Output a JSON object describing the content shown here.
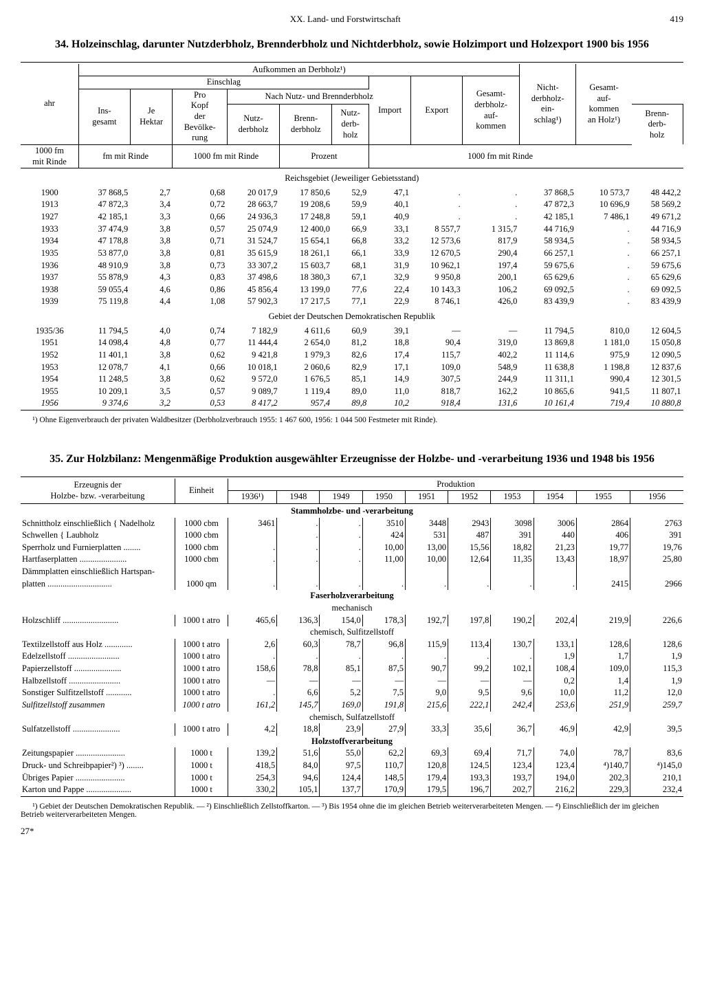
{
  "page": {
    "chapter": "XX. Land- und Forstwirtschaft",
    "number": "419",
    "signature": "27*"
  },
  "table34": {
    "title": "34. Holzeinschlag, darunter Nutzderbholz, Brennderbholz und Nichtderbholz, sowie Holzimport und Holzexport 1900 bis 1956",
    "head": {
      "jahr": "ahr",
      "aufkommen": "Aufkommen an Derbholz¹)",
      "einschlag": "Einschlag",
      "nachnb": "Nach Nutz- und Brennderbholz",
      "ins": "Ins-\ngesamt",
      "jeha": "Je\nHektar",
      "prokopf": "Pro\nKopf\nder\nBevölke-\nrung",
      "nutzd": "Nutz-\nderbholz",
      "brennd": "Brenn-\nderbholz",
      "nutzdh": "Nutz-\nderb-\nholz",
      "brenndh": "Brenn-\nderb-\nholz",
      "import": "Import",
      "export": "Export",
      "gesamtdh": "Gesamt-\nderbholz-\nauf-\nkommen",
      "nichtdh": "Nicht-\nderbholz-\nein-\nschlag¹)",
      "gesamtauf": "Gesamt-\nauf-\nkommen\nan Holz¹)",
      "u1": "1000 fm\nmit Rinde",
      "u2": "fm mit Rinde",
      "u3": "1000 fm mit Rinde",
      "u4": "Prozent",
      "u5": "1000 fm mit Rinde"
    },
    "sec1": "Reichsgebiet (Jeweiliger Gebietsstand)",
    "sec2": "Gebiet der Deutschen Demokratischen Republik",
    "rows1": [
      [
        "1900",
        "37 868,5",
        "2,7",
        "0,68",
        "20 017,9",
        "17 850,6",
        "52,9",
        "47,1",
        ".",
        ".",
        "37 868,5",
        "10 573,7",
        "48 442,2"
      ],
      [
        "1913",
        "47 872,3",
        "3,4",
        "0,72",
        "28 663,7",
        "19 208,6",
        "59,9",
        "40,1",
        ".",
        ".",
        "47 872,3",
        "10 696,9",
        "58 569,2"
      ],
      [
        "1927",
        "42 185,1",
        "3,3",
        "0,66",
        "24 936,3",
        "17 248,8",
        "59,1",
        "40,9",
        ".",
        ".",
        "42 185,1",
        "7 486,1",
        "49 671,2"
      ],
      [
        "1933",
        "37 474,9",
        "3,8",
        "0,57",
        "25 074,9",
        "12 400,0",
        "66,9",
        "33,1",
        "8 557,7",
        "1 315,7",
        "44 716,9",
        ".",
        "44 716,9"
      ],
      [
        "1934",
        "47 178,8",
        "3,8",
        "0,71",
        "31 524,7",
        "15 654,1",
        "66,8",
        "33,2",
        "12 573,6",
        "817,9",
        "58 934,5",
        ".",
        "58 934,5"
      ],
      [
        "1935",
        "53 877,0",
        "3,8",
        "0,81",
        "35 615,9",
        "18 261,1",
        "66,1",
        "33,9",
        "12 670,5",
        "290,4",
        "66 257,1",
        ".",
        "66 257,1"
      ],
      [
        "1936",
        "48 910,9",
        "3,8",
        "0,73",
        "33 307,2",
        "15 603,7",
        "68,1",
        "31,9",
        "10 962,1",
        "197,4",
        "59 675,6",
        ".",
        "59 675,6"
      ],
      [
        "1937",
        "55 878,9",
        "4,3",
        "0,83",
        "37 498,6",
        "18 380,3",
        "67,1",
        "32,9",
        "9 950,8",
        "200,1",
        "65 629,6",
        ".",
        "65 629,6"
      ],
      [
        "1938",
        "59 055,4",
        "4,6",
        "0,86",
        "45 856,4",
        "13 199,0",
        "77,6",
        "22,4",
        "10 143,3",
        "106,2",
        "69 092,5",
        ".",
        "69 092,5"
      ],
      [
        "1939",
        "75 119,8",
        "4,4",
        "1,08",
        "57 902,3",
        "17 217,5",
        "77,1",
        "22,9",
        "8 746,1",
        "426,0",
        "83 439,9",
        ".",
        "83 439,9"
      ]
    ],
    "rows2": [
      [
        "1935/36",
        "11 794,5",
        "4,0",
        "0,74",
        "7 182,9",
        "4 611,6",
        "60,9",
        "39,1",
        "—",
        "—",
        "11 794,5",
        "810,0",
        "12 604,5"
      ],
      [
        "1951",
        "14 098,4",
        "4,8",
        "0,77",
        "11 444,4",
        "2 654,0",
        "81,2",
        "18,8",
        "90,4",
        "319,0",
        "13 869,8",
        "1 181,0",
        "15 050,8"
      ],
      [
        "1952",
        "11 401,1",
        "3,8",
        "0,62",
        "9 421,8",
        "1 979,3",
        "82,6",
        "17,4",
        "115,7",
        "402,2",
        "11 114,6",
        "975,9",
        "12 090,5"
      ],
      [
        "1953",
        "12 078,7",
        "4,1",
        "0,66",
        "10 018,1",
        "2 060,6",
        "82,9",
        "17,1",
        "109,0",
        "548,9",
        "11 638,8",
        "1 198,8",
        "12 837,6"
      ],
      [
        "1954",
        "11 248,5",
        "3,8",
        "0,62",
        "9 572,0",
        "1 676,5",
        "85,1",
        "14,9",
        "307,5",
        "244,9",
        "11 311,1",
        "990,4",
        "12 301,5"
      ],
      [
        "1955",
        "10 209,1",
        "3,5",
        "0,57",
        "9 089,7",
        "1 119,4",
        "89,0",
        "11,0",
        "818,7",
        "162,2",
        "10 865,6",
        "941,5",
        "11 807,1"
      ],
      [
        "1956",
        "9 374,6",
        "3,2",
        "0,53",
        "8 417,2",
        "957,4",
        "89,8",
        "10,2",
        "918,4",
        "131,6",
        "10 161,4",
        "719,4",
        "10 880,8"
      ]
    ],
    "footnote": "¹) Ohne Eigenverbrauch der privaten Waldbesitzer (Derbholzverbrauch 1955: 1 467 600, 1956: 1 044 500 Festmeter mit Rinde)."
  },
  "table35": {
    "title": "35. Zur Holzbilanz: Mengenmäßige Produktion ausgewählter Erzeugnisse der Holzbe- und -verarbeitung 1936 und 1948 bis 1956",
    "head": {
      "erzeugnis": "Erzeugnis der\nHolzbe- bzw. -verarbeitung",
      "einheit": "Einheit",
      "produktion": "Produktion",
      "years": [
        "1936¹)",
        "1948",
        "1949",
        "1950",
        "1951",
        "1952",
        "1953",
        "1954",
        "1955",
        "1956"
      ]
    },
    "sections": {
      "s1": "Stammholzbe- und -verarbeitung",
      "s2": "Faserholzverarbeitung",
      "s2a": "mechanisch",
      "s2b": "chemisch, Sulfitzellstoff",
      "s2c": "chemisch, Sulfatzellstoff",
      "s3": "Holzstoffverarbeitung"
    },
    "rows_s1": [
      [
        "Schnittholz einschließlich { Nadelholz",
        "1000 cbm",
        "3461",
        ".",
        ".",
        "3510",
        "3448",
        "2943",
        "3098",
        "3006",
        "2864",
        "2763"
      ],
      [
        "Schwellen                    { Laubholz",
        "1000 cbm",
        "",
        ".",
        ".",
        "424",
        "531",
        "487",
        "391",
        "440",
        "406",
        "391"
      ],
      [
        "Sperrholz und Furnierplatten ........",
        "1000 cbm",
        ".",
        ".",
        ".",
        "10,00",
        "13,00",
        "15,56",
        "18,82",
        "21,23",
        "19,77",
        "19,76"
      ],
      [
        "Hartfaserplatten ......................",
        "1000 cbm",
        ".",
        ".",
        ".",
        "11,00",
        "10,00",
        "12,64",
        "11,35",
        "13,43",
        "18,97",
        "25,80"
      ],
      [
        "Dämmplatten einschließlich Hartspan-",
        "",
        "",
        "",
        "",
        "",
        "",
        "",
        "",
        "",
        "",
        ""
      ],
      [
        "  platten ..............................",
        "1000 qm",
        ".",
        ".",
        ".",
        ".",
        ".",
        ".",
        ".",
        ".",
        "2415",
        "2966"
      ]
    ],
    "rows_s2a": [
      [
        "Holzschliff ..........................",
        "1000 t atro",
        "465,6",
        "136,3",
        "154,0",
        "178,3",
        "192,7",
        "197,8",
        "190,2",
        "202,4",
        "219,9",
        "226,6"
      ]
    ],
    "rows_s2b": [
      [
        "Textilzellstoff aus Holz .............",
        "1000 t atro",
        "2,6",
        "60,3",
        "78,7",
        "96,8",
        "115,9",
        "113,4",
        "130,7",
        "133,1",
        "128,6",
        "128,6"
      ],
      [
        "Edelzellstoff ........................",
        "1000 t atro",
        ".",
        ".",
        ".",
        ".",
        ".",
        ".",
        ".",
        "1,9",
        "1,7",
        "1,9"
      ],
      [
        "Papierzellstoff ......................",
        "1000 t atro",
        "158,6",
        "78,8",
        "85,1",
        "87,5",
        "90,7",
        "99,2",
        "102,1",
        "108,4",
        "109,0",
        "115,3"
      ],
      [
        "Halbzellstoff ........................",
        "1000 t atro",
        "—",
        "—",
        "—",
        "—",
        "—",
        "—",
        "—",
        "0,2",
        "1,4",
        "1,9"
      ],
      [
        "Sonstiger Sulfitzellstoff ............",
        "1000 t atro",
        ".",
        "6,6",
        "5,2",
        "7,5",
        "9,0",
        "9,5",
        "9,6",
        "10,0",
        "11,2",
        "12,0"
      ],
      [
        "   Sulfitzellstoff zusammen",
        "1000 t atro",
        "161,2",
        "145,7",
        "169,0",
        "191,8",
        "215,6",
        "222,1",
        "242,4",
        "253,6",
        "251,9",
        "259,7"
      ]
    ],
    "rows_s2c": [
      [
        "Sulfatzellstoff ......................",
        "1000 t atro",
        "4,2",
        "18,8",
        "23,9",
        "27,9",
        "33,3",
        "35,6",
        "36,7",
        "46,9",
        "42,9",
        "39,5"
      ]
    ],
    "rows_s3": [
      [
        "Zeitungspapier .......................",
        "1000 t",
        "139,2",
        "51,6",
        "55,0",
        "62,2",
        "69,3",
        "69,4",
        "71,7",
        "74,0",
        "78,7",
        "83,6"
      ],
      [
        "Druck- und Schreibpapier²) ³) ........",
        "1000 t",
        "418,5",
        "84,0",
        "97,5",
        "110,7",
        "120,8",
        "124,5",
        "123,4",
        "123,4",
        "⁴)140,7",
        "⁴)145,0"
      ],
      [
        "Übriges Papier .......................",
        "1000 t",
        "254,3",
        "94,6",
        "124,4",
        "148,5",
        "179,4",
        "193,3",
        "193,7",
        "194,0",
        "202,3",
        "210,1"
      ],
      [
        "Karton und Pappe .....................",
        "1000 t",
        "330,2",
        "105,1",
        "137,7",
        "170,9",
        "179,5",
        "196,7",
        "202,7",
        "216,2",
        "229,3",
        "232,4"
      ]
    ],
    "footnote": "¹) Gebiet der Deutschen Demokratischen Republik. — ²) Einschließlich Zellstoffkarton. — ³) Bis 1954 ohne die im gleichen Betrieb weiterverarbeiteten Mengen. — ⁴) Einschließlich der im gleichen Betrieb weiterverarbeiteten Mengen."
  }
}
